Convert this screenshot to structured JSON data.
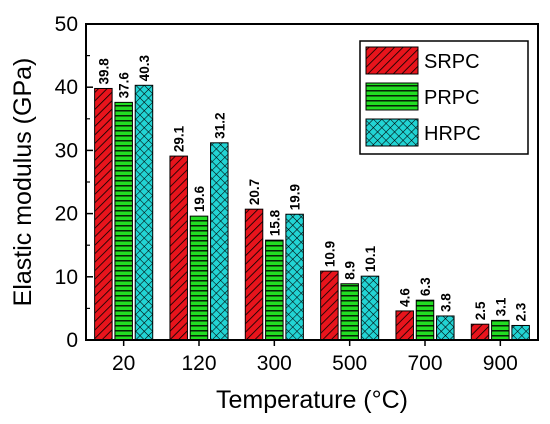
{
  "chart_data": {
    "type": "bar",
    "title": "",
    "xlabel": "Temperature (°C)",
    "ylabel": "Elastic modulus (GPa)",
    "ylim": [
      0,
      50
    ],
    "yticks": [
      "0",
      "10",
      "20",
      "30",
      "40",
      "50"
    ],
    "categories": [
      "20",
      "120",
      "300",
      "500",
      "700",
      "900"
    ],
    "series": [
      {
        "name": "SRPC",
        "values": [
          39.8,
          29.1,
          20.7,
          10.9,
          4.6,
          2.5
        ],
        "labels": [
          "39.8",
          "29.1",
          "20.7",
          "10.9",
          "4.6",
          "2.5"
        ],
        "color": "#e8141c",
        "pattern": "diagonal-hatch"
      },
      {
        "name": "PRPC",
        "values": [
          37.6,
          19.6,
          15.8,
          8.9,
          6.3,
          3.1
        ],
        "labels": [
          "37.6",
          "19.6",
          "15.8",
          "8.9",
          "6.3",
          "3.1"
        ],
        "color": "#22dd22",
        "pattern": "horizontal-lines"
      },
      {
        "name": "HRPC",
        "values": [
          40.3,
          31.2,
          19.9,
          10.1,
          3.8,
          2.3
        ],
        "labels": [
          "40.3",
          "31.2",
          "19.9",
          "10.1",
          "3.8",
          "2.3"
        ],
        "color": "#22d4d4",
        "pattern": "crosshatch"
      }
    ],
    "legend_position": "top-right",
    "grid": false
  }
}
